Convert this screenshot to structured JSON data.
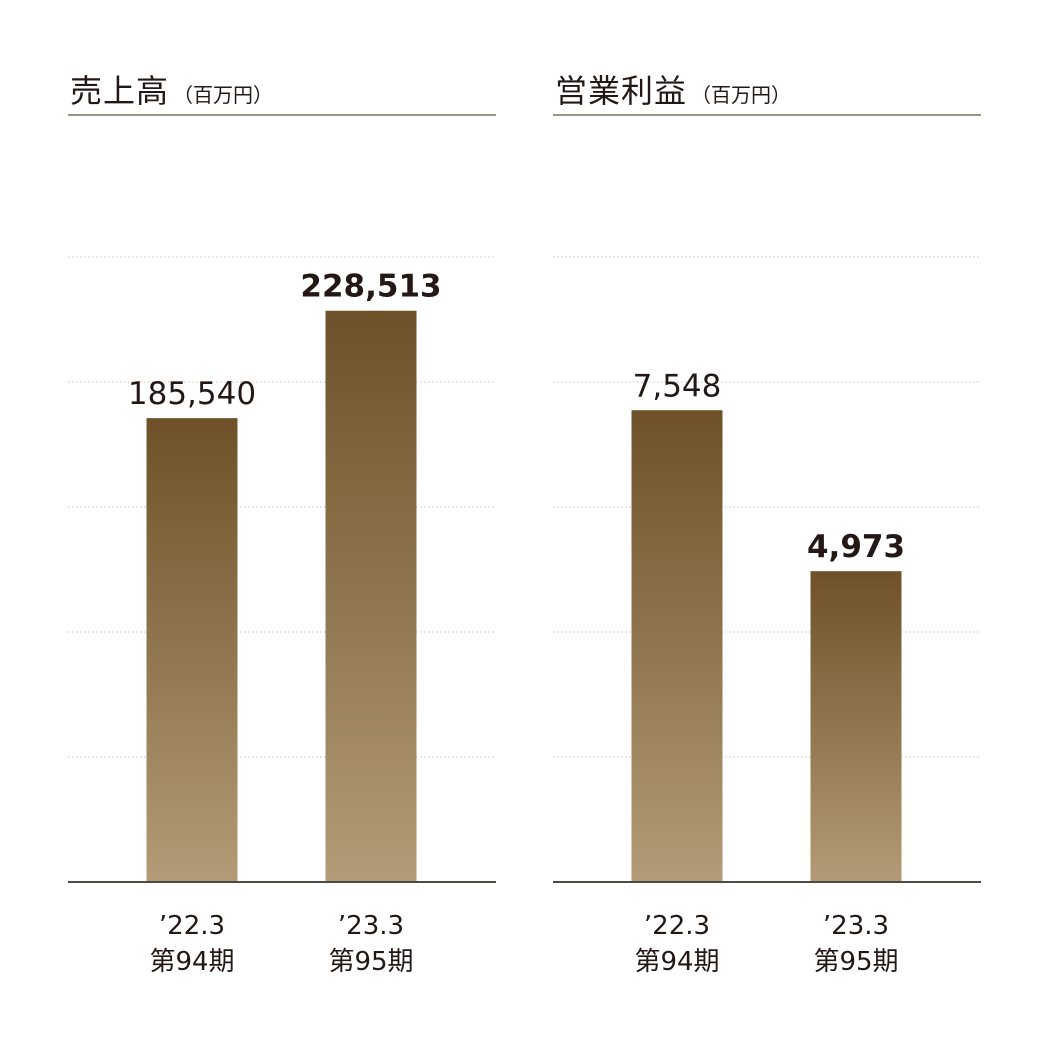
{
  "chart_data": [
    {
      "type": "bar",
      "title": "売上高",
      "unit": "（百万円）",
      "categories": [
        "’22.3\n第94期",
        "’23.3\n第95期"
      ],
      "values": [
        185540,
        228513
      ],
      "labels": [
        "185,540",
        "228,513"
      ],
      "highlight_index": 1,
      "ylim": [
        0,
        250000
      ],
      "grid": true
    },
    {
      "type": "bar",
      "title": "営業利益",
      "unit": "（百万円）",
      "categories": [
        "’22.3\n第94期",
        "’23.3\n第95期"
      ],
      "values": [
        7548,
        4973
      ],
      "labels": [
        "7,548",
        "4,973"
      ],
      "highlight_index": 1,
      "ylim": [
        0,
        10000
      ],
      "grid": true
    }
  ],
  "colors": {
    "bar_top": "#6e5128",
    "bar_bottom": "#b29b76",
    "grid": "#c9c4b8",
    "baseline": "#4d4a46",
    "title_rule": "#9a9484"
  }
}
